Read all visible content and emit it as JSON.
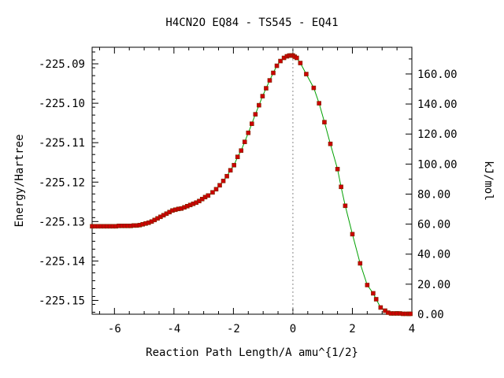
{
  "chart_data": {
    "type": "scatter",
    "title": "H4CN2O   EQ84 - TS545 - EQ41",
    "xlabel": "Reaction Path Length/A amu^{1/2}",
    "ylabel": "Energy/Hartree",
    "y2label": "kJ/mol",
    "xlim": [
      -6.75,
      4.0
    ],
    "ylim": [
      -225.1535,
      -225.0858
    ],
    "y2lim": [
      0.0,
      177.8
    ],
    "xticks": [
      "-6",
      "-4",
      "-2",
      "0",
      "2",
      "4"
    ],
    "xtick_values": [
      -6,
      -4,
      -2,
      0,
      2,
      4
    ],
    "yticks": [
      "-225.09",
      "-225.10",
      "-225.11",
      "-225.12",
      "-225.13",
      "-225.14",
      "-225.15"
    ],
    "ytick_values": [
      -225.09,
      -225.1,
      -225.11,
      -225.12,
      -225.13,
      -225.14,
      -225.15
    ],
    "y2ticks": [
      "0.00",
      "20.00",
      "40.00",
      "60.00",
      "80.00",
      "100.00",
      "120.00",
      "140.00",
      "160.00"
    ],
    "y2tick_values": [
      0,
      20,
      40,
      60,
      80,
      100,
      120,
      140,
      160
    ],
    "ts_marker_x": 0.0,
    "grid": false,
    "series": [
      {
        "color": "#cc0000",
        "x": [
          -6.75,
          -6.65,
          -6.55,
          -6.45,
          -6.35,
          -6.25,
          -6.15,
          -6.05,
          -5.95,
          -5.85,
          -5.75,
          -5.65,
          -5.55,
          -5.45,
          -5.35,
          -5.25,
          -5.15,
          -5.05,
          -4.95,
          -4.85,
          -4.75,
          -4.65,
          -4.55,
          -4.45,
          -4.35,
          -4.25,
          -4.15,
          -4.05,
          -3.95,
          -3.85,
          -3.75,
          -3.65,
          -3.55,
          -3.45,
          -3.35,
          -3.25,
          -3.15,
          -3.05,
          -2.95,
          -2.85,
          -2.7,
          -2.58,
          -2.46,
          -2.34,
          -2.22,
          -2.1,
          -1.98,
          -1.86,
          -1.74,
          -1.62,
          -1.5,
          -1.38,
          -1.26,
          -1.14,
          -1.02,
          -0.9,
          -0.78,
          -0.66,
          -0.54,
          -0.42,
          -0.3,
          -0.2,
          -0.12,
          -0.06,
          0.0,
          0.06,
          0.13,
          0.25,
          0.45,
          0.7,
          0.88,
          1.06,
          1.26,
          1.5,
          1.62,
          1.76,
          2.0,
          2.26,
          2.5,
          2.7,
          2.8,
          2.95,
          3.1,
          3.2,
          3.3,
          3.4,
          3.5,
          3.6,
          3.7,
          3.8,
          3.9,
          3.95
        ],
        "y": [
          -225.1312,
          -225.1312,
          -225.1312,
          -225.1312,
          -225.1312,
          -225.1312,
          -225.1312,
          -225.1312,
          -225.1312,
          -225.1311,
          -225.1311,
          -225.1311,
          -225.1311,
          -225.1311,
          -225.131,
          -225.131,
          -225.1309,
          -225.1307,
          -225.1305,
          -225.1303,
          -225.13,
          -225.1296,
          -225.1292,
          -225.1288,
          -225.1284,
          -225.128,
          -225.1276,
          -225.1272,
          -225.127,
          -225.1268,
          -225.1267,
          -225.1264,
          -225.1261,
          -225.1258,
          -225.1255,
          -225.1252,
          -225.1248,
          -225.1243,
          -225.1238,
          -225.1234,
          -225.1226,
          -225.1218,
          -225.1208,
          -225.1197,
          -225.1185,
          -225.117,
          -225.1157,
          -225.1136,
          -225.112,
          -225.1098,
          -225.1075,
          -225.1052,
          -225.1028,
          -225.1005,
          -225.0982,
          -225.0962,
          -225.0942,
          -225.0923,
          -225.0905,
          -225.0893,
          -225.0885,
          -225.0881,
          -225.0879,
          -225.0879,
          -225.0879,
          -225.0882,
          -225.0885,
          -225.0898,
          -225.0926,
          -225.0961,
          -225.1,
          -225.1048,
          -225.1103,
          -225.1167,
          -225.1212,
          -225.126,
          -225.1332,
          -225.1406,
          -225.1461,
          -225.1482,
          -225.1497,
          -225.1518,
          -225.1526,
          -225.1531,
          -225.1533,
          -225.1533,
          -225.1533,
          -225.1533,
          -225.1534,
          -225.1534,
          -225.1534,
          -225.1534
        ]
      }
    ]
  }
}
